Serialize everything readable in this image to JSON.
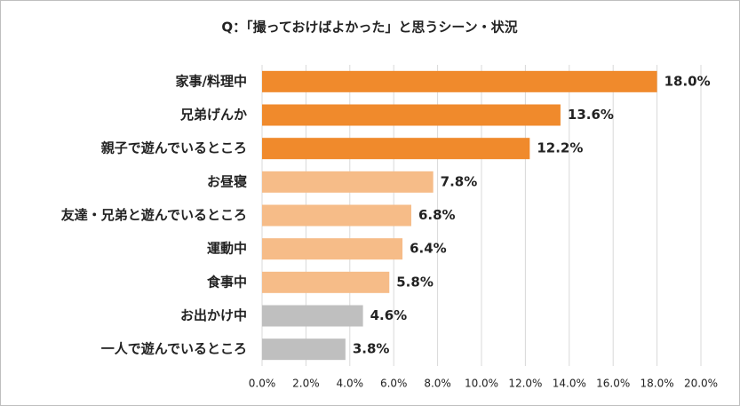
{
  "chart_data": {
    "type": "barh",
    "title": "Q：「撮っておけばよかった」と思うシーン・状況",
    "categories": [
      "家事/料理中",
      "兄弟げんか",
      "親子で遊んでいるところ",
      "お昼寝",
      "友達・兄弟と遊んでいるところ",
      "運動中",
      "食事中",
      "お出かけ中",
      "一人で遊んでいるところ"
    ],
    "values": [
      18.0,
      13.6,
      12.2,
      7.8,
      6.8,
      6.4,
      5.8,
      4.6,
      3.8
    ],
    "value_labels": [
      "18.0%",
      "13.6%",
      "12.2%",
      "7.8%",
      "6.8%",
      "6.4%",
      "5.8%",
      "4.6%",
      "3.8%"
    ],
    "colors": [
      "#f08a2c",
      "#f08a2c",
      "#f08a2c",
      "#f6bc88",
      "#f6bc88",
      "#f6bc88",
      "#f6bc88",
      "#bfbfbf",
      "#bfbfbf"
    ],
    "xlim": [
      0,
      20
    ],
    "xticks": [
      {
        "value": 0,
        "label": "0.0%"
      },
      {
        "value": 2,
        "label": "2.0%"
      },
      {
        "value": 4,
        "label": "4.0%"
      },
      {
        "value": 6,
        "label": "6.0%"
      },
      {
        "value": 8,
        "label": "8.0%"
      },
      {
        "value": 10,
        "label": "10.0%"
      },
      {
        "value": 12,
        "label": "12.0%"
      },
      {
        "value": 14,
        "label": "14.0%"
      },
      {
        "value": 16,
        "label": "16.0%"
      },
      {
        "value": 18,
        "label": "18.0%"
      },
      {
        "value": 20,
        "label": "20.0%"
      }
    ],
    "grid": true
  }
}
